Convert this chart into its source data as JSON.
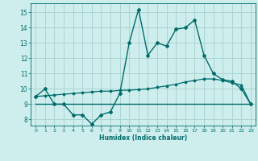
{
  "xlabel": "Humidex (Indice chaleur)",
  "bg_color": "#ceeeed",
  "grid_color": "#aad4d2",
  "line_color": "#006b6b",
  "xlim": [
    -0.5,
    23.5
  ],
  "ylim": [
    7.6,
    15.6
  ],
  "xticks": [
    0,
    1,
    2,
    3,
    4,
    5,
    6,
    7,
    8,
    9,
    10,
    11,
    12,
    13,
    14,
    15,
    16,
    17,
    18,
    19,
    20,
    21,
    22,
    23
  ],
  "yticks": [
    8,
    9,
    10,
    11,
    12,
    13,
    14,
    15
  ],
  "line1_x": [
    0,
    1,
    2,
    3,
    4,
    5,
    6,
    7,
    8,
    9,
    10,
    11,
    12,
    13,
    14,
    15,
    16,
    17,
    18,
    19,
    20,
    21,
    22,
    23
  ],
  "line1_y": [
    9.5,
    10.0,
    9.0,
    9.0,
    8.3,
    8.3,
    7.7,
    8.3,
    8.5,
    9.7,
    13.0,
    15.2,
    12.2,
    13.0,
    12.8,
    13.9,
    14.0,
    14.5,
    12.2,
    11.0,
    10.6,
    10.5,
    10.0,
    9.0
  ],
  "line2_x": [
    0,
    1,
    2,
    3,
    4,
    5,
    6,
    7,
    8,
    9,
    10,
    11,
    12,
    13,
    14,
    15,
    16,
    17,
    18,
    19,
    20,
    21,
    22,
    23
  ],
  "line2_y": [
    9.5,
    9.55,
    9.6,
    9.65,
    9.7,
    9.75,
    9.8,
    9.85,
    9.85,
    9.9,
    9.92,
    9.95,
    10.0,
    10.1,
    10.2,
    10.3,
    10.45,
    10.55,
    10.65,
    10.65,
    10.55,
    10.4,
    10.25,
    9.0
  ],
  "line3_x": [
    0,
    23
  ],
  "line3_y": [
    9.0,
    9.0
  ]
}
